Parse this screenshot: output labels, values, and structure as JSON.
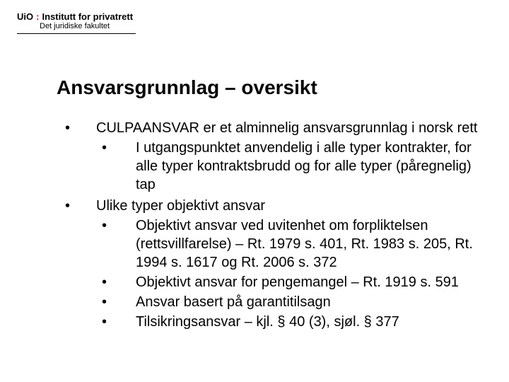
{
  "header": {
    "logo_prefix": "UiO",
    "logo_separator": ":",
    "logo_institute": "Institutt for privatrett",
    "logo_faculty": "Det juridiske fakultet"
  },
  "slide": {
    "title": "Ansvarsgrunnlag – oversikt",
    "title_fontsize": 28,
    "body_fontsize": 20,
    "text_color": "#000000",
    "background_color": "#ffffff",
    "accent_color": "#d00000",
    "items": [
      {
        "text": "CULPAANSVAR er et alminnelig ansvarsgrunnlag i norsk rett",
        "children": [
          {
            "text": "I utgangspunktet anvendelig i alle typer kontrakter, for alle typer kontraktsbrudd og for alle typer (påregnelig) tap"
          }
        ]
      },
      {
        "text": "Ulike typer objektivt ansvar",
        "children": [
          {
            "text": "Objektivt ansvar ved uvitenhet om forpliktelsen (rettsvillfarelse) – Rt. 1979 s. 401, Rt. 1983 s. 205, Rt. 1994 s. 1617 og Rt. 2006 s. 372"
          },
          {
            "text": "Objektivt ansvar for pengemangel – Rt. 1919 s. 591"
          },
          {
            "text": "Ansvar basert på garantitilsagn"
          },
          {
            "text": "Tilsikringsansvar – kjl. § 40 (3), sjøl. § 377"
          }
        ]
      }
    ]
  }
}
